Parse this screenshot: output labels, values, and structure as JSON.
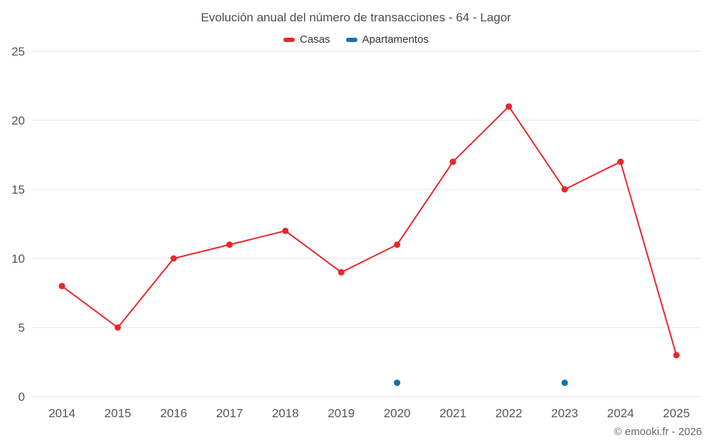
{
  "title": "Evolución anual del número de transacciones - 64 - Lagor",
  "footer": "© emooki.fr - 2026",
  "colors": {
    "grid": "#e6e6e6",
    "axis_text": "#555555",
    "casas": "#e8272c",
    "apartamentos": "#1272a8"
  },
  "chart_data": {
    "type": "line",
    "title": "Evolución anual del número de transacciones - 64 - Lagor",
    "x": [
      2014,
      2015,
      2016,
      2017,
      2018,
      2019,
      2020,
      2021,
      2022,
      2023,
      2024,
      2025
    ],
    "series": [
      {
        "name": "Casas",
        "color": "#e8272c",
        "values": [
          8,
          5,
          10,
          11,
          12,
          9,
          11,
          17,
          21,
          15,
          17,
          3
        ]
      },
      {
        "name": "Apartamentos",
        "color": "#1272a8",
        "values": [
          null,
          null,
          null,
          null,
          null,
          null,
          1,
          null,
          null,
          1,
          null,
          null
        ]
      }
    ],
    "xlabel": "",
    "ylabel": "",
    "ylim": [
      0,
      25
    ],
    "yticks": [
      0,
      5,
      10,
      15,
      20,
      25
    ],
    "grid": true,
    "legend_position": "top"
  }
}
